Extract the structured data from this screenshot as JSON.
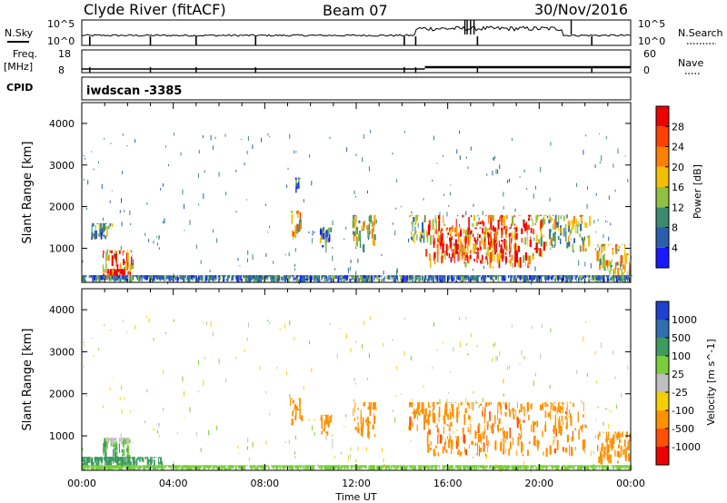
{
  "header": {
    "station": "Clyde River (fitACF)",
    "beam": "Beam 07",
    "date": "30/Nov/2016"
  },
  "noise_panel": {
    "left_label": "N.Sky",
    "right_label": "N.Search",
    "tick_top": "10^5",
    "tick_bottom": "10^0"
  },
  "freq_panel": {
    "left_label_1": "Freq.",
    "left_label_2": "[MHz]",
    "right_label": "Nave",
    "freq_ticks": [
      "18",
      "8"
    ],
    "nave_ticks": [
      "60",
      "0"
    ]
  },
  "cpid": {
    "label": "CPID",
    "value": "iwdscan -3385"
  },
  "x_axis": {
    "label": "Time UT",
    "ticks": [
      "00:00",
      "04:00",
      "08:00",
      "12:00",
      "16:00",
      "20:00",
      "00:00"
    ]
  },
  "chart_data": [
    {
      "type": "heatmap",
      "name": "power",
      "ylabel": "Slant Range [km]",
      "ylim": [
        180,
        4500
      ],
      "yticks": [
        1000,
        2000,
        3000,
        4000
      ],
      "xlim_hours": [
        0,
        24
      ],
      "colorbar": {
        "label": "Power [dB]",
        "range": [
          0,
          32
        ],
        "ticks": [
          "4",
          "8",
          "12",
          "16",
          "20",
          "24",
          "28"
        ],
        "colors": [
          "#1a1aff",
          "#2a5fb0",
          "#3c8a70",
          "#8fc040",
          "#f2c000",
          "#ff8000",
          "#ff4000",
          "#ee0000"
        ]
      },
      "regions": [
        {
          "t0": 0.9,
          "t1": 2.2,
          "r0": 200,
          "r1": 950,
          "value": 24
        },
        {
          "t0": 1.1,
          "t1": 1.9,
          "r0": 250,
          "r1": 500,
          "value": 30
        },
        {
          "t0": 0.4,
          "t1": 1.3,
          "r0": 1200,
          "r1": 1600,
          "value": 10
        },
        {
          "t0": 9.1,
          "t1": 9.6,
          "r0": 1200,
          "r1": 1900,
          "value": 18
        },
        {
          "t0": 9.3,
          "t1": 9.5,
          "r0": 2300,
          "r1": 2700,
          "value": 8
        },
        {
          "t0": 10.4,
          "t1": 10.9,
          "r0": 1000,
          "r1": 1500,
          "value": 10
        },
        {
          "t0": 11.8,
          "t1": 12.8,
          "r0": 900,
          "r1": 1800,
          "value": 16
        },
        {
          "t0": 14.3,
          "t1": 15.0,
          "r0": 1100,
          "r1": 1800,
          "value": 12
        },
        {
          "t0": 15.0,
          "t1": 20.2,
          "r0": 500,
          "r1": 1800,
          "value": 24
        },
        {
          "t0": 15.5,
          "t1": 19.0,
          "r0": 600,
          "r1": 1500,
          "value": 28
        },
        {
          "t0": 20.0,
          "t1": 22.2,
          "r0": 900,
          "r1": 1800,
          "value": 14
        },
        {
          "t0": 22.5,
          "t1": 24.0,
          "r0": 300,
          "r1": 1100,
          "value": 18
        },
        {
          "t0": 0.0,
          "t1": 24.0,
          "r0": 180,
          "r1": 350,
          "value": 8
        }
      ]
    },
    {
      "type": "heatmap",
      "name": "velocity",
      "ylabel": "Slant Range [km]",
      "ylim": [
        180,
        4500
      ],
      "yticks": [
        1000,
        2000,
        3000,
        4000
      ],
      "xlim_hours": [
        0,
        24
      ],
      "colorbar": {
        "label": "Velocity [m s^-1]",
        "ticks": [
          "1000",
          "500",
          "100",
          "25",
          "-25",
          "-100",
          "-500",
          "-1000"
        ],
        "colors": [
          "#2040d0",
          "#2e6fb0",
          "#3d9a60",
          "#79cf3a",
          "#bfbfbf",
          "#f3d000",
          "#ff9000",
          "#ff5000",
          "#ee0000"
        ]
      },
      "regions": [
        {
          "t0": 0.9,
          "t1": 2.2,
          "r0": 200,
          "r1": 950,
          "value": 100
        },
        {
          "t0": 1.1,
          "t1": 2.0,
          "r0": 800,
          "r1": 950,
          "value": 0
        },
        {
          "t0": 0.0,
          "t1": 3.5,
          "r0": 180,
          "r1": 500,
          "value": 150
        },
        {
          "t0": 9.1,
          "t1": 9.6,
          "r0": 1200,
          "r1": 1900,
          "value": -300
        },
        {
          "t0": 10.4,
          "t1": 10.9,
          "r0": 1000,
          "r1": 1500,
          "value": -150
        },
        {
          "t0": 11.8,
          "t1": 12.8,
          "r0": 900,
          "r1": 1800,
          "value": -300
        },
        {
          "t0": 14.3,
          "t1": 15.0,
          "r0": 1100,
          "r1": 1800,
          "value": -400
        },
        {
          "t0": 15.0,
          "t1": 22.0,
          "r0": 500,
          "r1": 1800,
          "value": -400
        },
        {
          "t0": 22.5,
          "t1": 24.0,
          "r0": 300,
          "r1": 1100,
          "value": -200
        },
        {
          "t0": 0.0,
          "t1": 24.0,
          "r0": 180,
          "r1": 300,
          "value": 50
        }
      ]
    }
  ]
}
